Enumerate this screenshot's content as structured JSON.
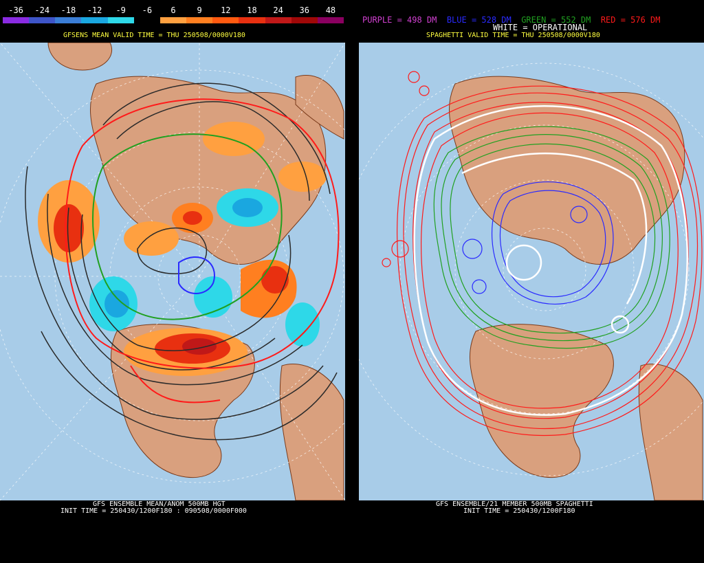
{
  "left": {
    "scale_labels": [
      "-36",
      "-24",
      "-18",
      "-12",
      "-9",
      "-6",
      "6",
      "9",
      "12",
      "18",
      "24",
      "36",
      "48"
    ],
    "scale_colors": [
      "#8a2be2",
      "#3e55c8",
      "#3b7ed6",
      "#1aa7e0",
      "#2ed8e8",
      "#000000",
      "#ffa040",
      "#ff7f20",
      "#ff5a10",
      "#e83010",
      "#c01818",
      "#a00808",
      "#8a0060"
    ],
    "valid_time": "GFSENS MEAN VALID TIME = THU 250508/0000V180",
    "footer_line1": "GFS ENSEMBLE MEAN/ANOM 500MB HGT",
    "footer_line2": "INIT TIME = 250430/1200F180 : 090508/0000F000"
  },
  "right": {
    "legend_purple": "PURPLE = 498 DM",
    "legend_blue": "BLUE = 528 DM",
    "legend_green": "GREEN = 552 DM",
    "legend_red": "RED = 576 DM",
    "legend_white": "WHITE = OPERATIONAL",
    "valid_time": "SPAGHETTI VALID TIME = THU 250508/0000V180",
    "footer_line1": "GFS ENSEMBLE/21 MEMBER 500MB SPAGHETTI",
    "footer_line2": "INIT TIME = 250430/1200F180"
  },
  "colors": {
    "ocean": "#a8cce8",
    "land": "#d9a07e",
    "coast": "#7a3a1a",
    "purple": "#d040d0",
    "blue": "#2a2aff",
    "green": "#20a020",
    "red": "#ff1a1a"
  }
}
